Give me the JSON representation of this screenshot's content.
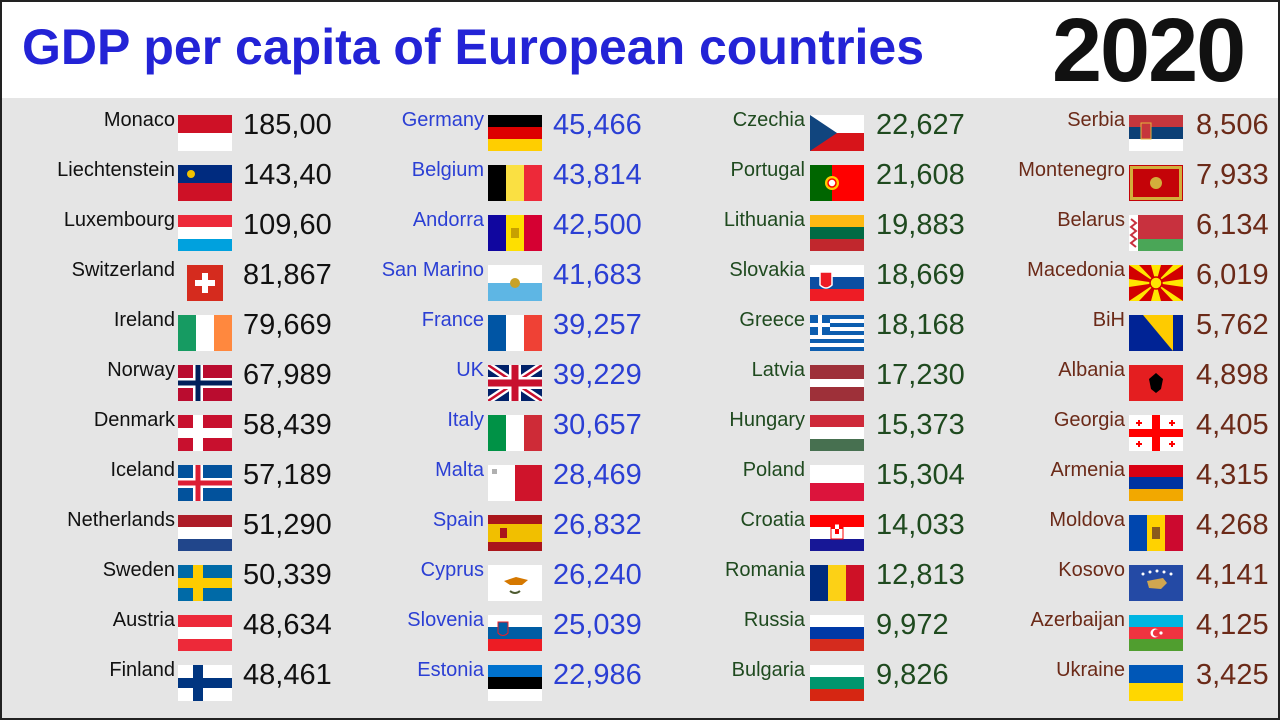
{
  "title": "GDP per capita of European countries",
  "year": "2020",
  "colors": {
    "title": "#2323d6",
    "col1": "#111111",
    "col2": "#2b3fd4",
    "col3": "#1f4a1f",
    "col4": "#6b2a18"
  },
  "chart_data": {
    "type": "table",
    "title": "GDP per capita of European countries",
    "year": "2020",
    "columns": [
      {
        "color": "#111111",
        "rows": [
          {
            "country": "Monaco",
            "flag": "monaco",
            "value": "185,00"
          },
          {
            "country": "Liechtenstein",
            "flag": "liechtenstein",
            "value": "143,40"
          },
          {
            "country": "Luxembourg",
            "flag": "luxembourg",
            "value": "109,60"
          },
          {
            "country": "Switzerland",
            "flag": "switzerland",
            "value": "81,867"
          },
          {
            "country": "Ireland",
            "flag": "ireland",
            "value": "79,669"
          },
          {
            "country": "Norway",
            "flag": "norway",
            "value": "67,989"
          },
          {
            "country": "Denmark",
            "flag": "denmark",
            "value": "58,439"
          },
          {
            "country": "Iceland",
            "flag": "iceland",
            "value": "57,189"
          },
          {
            "country": "Netherlands",
            "flag": "netherlands",
            "value": "51,290"
          },
          {
            "country": "Sweden",
            "flag": "sweden",
            "value": "50,339"
          },
          {
            "country": "Austria",
            "flag": "austria",
            "value": "48,634"
          },
          {
            "country": "Finland",
            "flag": "finland",
            "value": "48,461"
          }
        ]
      },
      {
        "color": "#2b3fd4",
        "rows": [
          {
            "country": "Germany",
            "flag": "germany",
            "value": "45,466"
          },
          {
            "country": "Belgium",
            "flag": "belgium",
            "value": "43,814"
          },
          {
            "country": "Andorra",
            "flag": "andorra",
            "value": "42,500"
          },
          {
            "country": "San Marino",
            "flag": "san-marino",
            "value": "41,683"
          },
          {
            "country": "France",
            "flag": "france",
            "value": "39,257"
          },
          {
            "country": "UK",
            "flag": "uk",
            "value": "39,229"
          },
          {
            "country": "Italy",
            "flag": "italy",
            "value": "30,657"
          },
          {
            "country": "Malta",
            "flag": "malta",
            "value": "28,469"
          },
          {
            "country": "Spain",
            "flag": "spain",
            "value": "26,832"
          },
          {
            "country": "Cyprus",
            "flag": "cyprus",
            "value": "26,240"
          },
          {
            "country": "Slovenia",
            "flag": "slovenia",
            "value": "25,039"
          },
          {
            "country": "Estonia",
            "flag": "estonia",
            "value": "22,986"
          }
        ]
      },
      {
        "color": "#1f4a1f",
        "rows": [
          {
            "country": "Czechia",
            "flag": "czechia",
            "value": "22,627"
          },
          {
            "country": "Portugal",
            "flag": "portugal",
            "value": "21,608"
          },
          {
            "country": "Lithuania",
            "flag": "lithuania",
            "value": "19,883"
          },
          {
            "country": "Slovakia",
            "flag": "slovakia",
            "value": "18,669"
          },
          {
            "country": "Greece",
            "flag": "greece",
            "value": "18,168"
          },
          {
            "country": "Latvia",
            "flag": "latvia",
            "value": "17,230"
          },
          {
            "country": "Hungary",
            "flag": "hungary",
            "value": "15,373"
          },
          {
            "country": "Poland",
            "flag": "poland",
            "value": "15,304"
          },
          {
            "country": "Croatia",
            "flag": "croatia",
            "value": "14,033"
          },
          {
            "country": "Romania",
            "flag": "romania",
            "value": "12,813"
          },
          {
            "country": "Russia",
            "flag": "russia",
            "value": "9,972"
          },
          {
            "country": "Bulgaria",
            "flag": "bulgaria",
            "value": "9,826"
          }
        ]
      },
      {
        "color": "#6b2a18",
        "rows": [
          {
            "country": "Serbia",
            "flag": "serbia",
            "value": "8,506"
          },
          {
            "country": "Montenegro",
            "flag": "montenegro",
            "value": "7,933"
          },
          {
            "country": "Belarus",
            "flag": "belarus",
            "value": "6,134"
          },
          {
            "country": "Macedonia",
            "flag": "macedonia",
            "value": "6,019"
          },
          {
            "country": "BiH",
            "flag": "bih",
            "value": "5,762"
          },
          {
            "country": "Albania",
            "flag": "albania",
            "value": "4,898"
          },
          {
            "country": "Georgia",
            "flag": "georgia",
            "value": "4,405"
          },
          {
            "country": "Armenia",
            "flag": "armenia",
            "value": "4,315"
          },
          {
            "country": "Moldova",
            "flag": "moldova",
            "value": "4,268"
          },
          {
            "country": "Kosovo",
            "flag": "kosovo",
            "value": "4,141"
          },
          {
            "country": "Azerbaijan",
            "flag": "azerbaijan",
            "value": "4,125"
          },
          {
            "country": "Ukraine",
            "flag": "ukraine",
            "value": "3,425"
          }
        ]
      }
    ]
  }
}
